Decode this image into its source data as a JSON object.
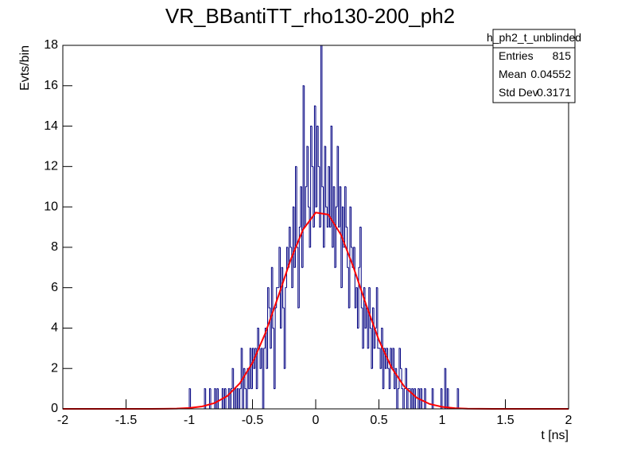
{
  "chart_data": {
    "type": "histogram",
    "title": "VR_BBantiTT_rho130-200_ph2",
    "x_label": "t [ns]",
    "y_label": "Evts/bin",
    "color": "#000080",
    "xlim": [
      -2,
      2
    ],
    "ylim": [
      0,
      18
    ],
    "xticks": [
      -2,
      -1.5,
      -1,
      -0.5,
      0,
      0.5,
      1,
      1.5,
      2
    ],
    "yticks": [
      0,
      2,
      4,
      6,
      8,
      10,
      12,
      14,
      16,
      18
    ],
    "stats": {
      "name": "h_ph2_t_unblinded",
      "rows": [
        [
          "Entries",
          "815"
        ],
        [
          "Mean",
          "0.04552"
        ],
        [
          "Std Dev",
          "0.3171"
        ]
      ]
    },
    "fit": {
      "color": "#ff0000",
      "x": [
        -2,
        -1.9,
        -1.8,
        -1.7,
        -1.6,
        -1.5,
        -1.4,
        -1.3,
        -1.2,
        -1.1,
        -1,
        -0.9,
        -0.8,
        -0.7,
        -0.6,
        -0.5,
        -0.4,
        -0.3,
        -0.2,
        -0.1,
        0,
        0.1,
        0.2,
        0.3,
        0.4,
        0.5,
        0.6,
        0.7,
        0.8,
        0.9,
        1,
        1.1,
        1.2,
        1.3,
        1.4,
        1.5,
        1.6,
        1.7,
        1.8,
        1.9,
        2
      ],
      "values": [
        0,
        0,
        0,
        0,
        0,
        0,
        0,
        0,
        0.0045,
        0.0148,
        0.044,
        0.118,
        0.288,
        0.634,
        1.265,
        2.28,
        3.72,
        5.5,
        7.35,
        8.88,
        9.72,
        9.62,
        8.62,
        6.99,
        5.13,
        3.4,
        2.04,
        1.11,
        0.546,
        0.243,
        0.098,
        0.036,
        0.012,
        0.0035,
        0,
        0,
        0,
        0,
        0,
        0,
        0
      ]
    },
    "bins": [
      -2,
      -1.99,
      -1.98,
      -1.97,
      -1.96,
      -1.95,
      -1.94,
      -1.93,
      -1.92,
      -1.91,
      -1.9,
      -1.89,
      -1.88,
      -1.87,
      -1.86,
      -1.85,
      -1.84,
      -1.83,
      -1.82,
      -1.81,
      -1.8,
      -1.79,
      -1.78,
      -1.77,
      -1.76,
      -1.75,
      -1.74,
      -1.73,
      -1.72,
      -1.71,
      -1.7,
      -1.69,
      -1.68,
      -1.67,
      -1.66,
      -1.65,
      -1.64,
      -1.63,
      -1.62,
      -1.61,
      -1.6,
      -1.59,
      -1.58,
      -1.57,
      -1.56,
      -1.55,
      -1.54,
      -1.53,
      -1.52,
      -1.51,
      -1.5,
      -1.49,
      -1.48,
      -1.47,
      -1.46,
      -1.45,
      -1.44,
      -1.43,
      -1.42,
      -1.41,
      -1.4,
      -1.39,
      -1.38,
      -1.37,
      -1.36,
      -1.35,
      -1.34,
      -1.33,
      -1.32,
      -1.31,
      -1.3,
      -1.29,
      -1.28,
      -1.27,
      -1.26,
      -1.25,
      -1.24,
      -1.23,
      -1.22,
      -1.21,
      -1.2,
      -1.19,
      -1.18,
      -1.17,
      -1.16,
      -1.15,
      -1.14,
      -1.13,
      -1.12,
      -1.11,
      -1.1,
      -1.09,
      -1.08,
      -1.07,
      -1.06,
      -1.05,
      -1.04,
      -1.03,
      -1.02,
      -1.01,
      -1,
      -0.99,
      -0.98,
      -0.97,
      -0.96,
      -0.95,
      -0.94,
      -0.93,
      -0.92,
      -0.91,
      -0.9,
      -0.89,
      -0.88,
      -0.87,
      -0.86,
      -0.85,
      -0.84,
      -0.83,
      -0.82,
      -0.81,
      -0.8,
      -0.79,
      -0.78,
      -0.77,
      -0.76,
      -0.75,
      -0.74,
      -0.73,
      -0.72,
      -0.71,
      -0.7,
      -0.69,
      -0.68,
      -0.67,
      -0.66,
      -0.65,
      -0.64,
      -0.63,
      -0.62,
      -0.61,
      -0.6,
      -0.59,
      -0.58,
      -0.57,
      -0.56,
      -0.55,
      -0.54,
      -0.53,
      -0.52,
      -0.51,
      -0.5,
      -0.49,
      -0.48,
      -0.47,
      -0.46,
      -0.45,
      -0.44,
      -0.43,
      -0.42,
      -0.41,
      -0.4,
      -0.39,
      -0.38,
      -0.37,
      -0.36,
      -0.35,
      -0.34,
      -0.33,
      -0.32,
      -0.31,
      -0.3,
      -0.29,
      -0.28,
      -0.27,
      -0.26,
      -0.25,
      -0.24,
      -0.23,
      -0.22,
      -0.21,
      -0.2,
      -0.19,
      -0.18,
      -0.17,
      -0.16,
      -0.15,
      -0.14,
      -0.13,
      -0.12,
      -0.11,
      -0.1,
      -0.09,
      -0.08,
      -0.07,
      -0.06,
      -0.05,
      -0.04,
      -0.03,
      -0.02,
      -0.01,
      0,
      0.01,
      0.02,
      0.03,
      0.04,
      0.05,
      0.06,
      0.07,
      0.08,
      0.09,
      0.1,
      0.11,
      0.12,
      0.13,
      0.14,
      0.15,
      0.16,
      0.17,
      0.18,
      0.19,
      0.2,
      0.21,
      0.22,
      0.23,
      0.24,
      0.25,
      0.26,
      0.27,
      0.28,
      0.29,
      0.3,
      0.31,
      0.32,
      0.33,
      0.34,
      0.35,
      0.36,
      0.37,
      0.38,
      0.39,
      0.4,
      0.41,
      0.42,
      0.43,
      0.44,
      0.45,
      0.46,
      0.47,
      0.48,
      0.49,
      0.5,
      0.51,
      0.52,
      0.53,
      0.54,
      0.55,
      0.56,
      0.57,
      0.58,
      0.59,
      0.6,
      0.61,
      0.62,
      0.63,
      0.64,
      0.65,
      0.66,
      0.67,
      0.68,
      0.69,
      0.7,
      0.71,
      0.72,
      0.73,
      0.74,
      0.75,
      0.76,
      0.77,
      0.78,
      0.79,
      0.8,
      0.81,
      0.82,
      0.83,
      0.84,
      0.85,
      0.86,
      0.87,
      0.88,
      0.89,
      0.9,
      0.91,
      0.92,
      0.93,
      0.94,
      0.95,
      0.96,
      0.97,
      0.98,
      0.99,
      1,
      1.01,
      1.02,
      1.03,
      1.04,
      1.05,
      1.06,
      1.07,
      1.08,
      1.09,
      1.1,
      1.11,
      1.12,
      1.13,
      1.14,
      1.15,
      1.16,
      1.17,
      1.18,
      1.19,
      1.2,
      1.21,
      1.22,
      1.23,
      1.24,
      1.25,
      1.26,
      1.27,
      1.28,
      1.29,
      1.3,
      1.31,
      1.32,
      1.33,
      1.34,
      1.35,
      1.36,
      1.37,
      1.38,
      1.39,
      1.4,
      1.41,
      1.42,
      1.43,
      1.44,
      1.45,
      1.46,
      1.47,
      1.48,
      1.49,
      1.5,
      1.51,
      1.52,
      1.53,
      1.54,
      1.55,
      1.56,
      1.57,
      1.58,
      1.59,
      1.6,
      1.61,
      1.62,
      1.63,
      1.64,
      1.65,
      1.66,
      1.67,
      1.68,
      1.69,
      1.7,
      1.71,
      1.72,
      1.73,
      1.74,
      1.75,
      1.76,
      1.77,
      1.78,
      1.79,
      1.8,
      1.81,
      1.82,
      1.83,
      1.84,
      1.85,
      1.86,
      1.87,
      1.88,
      1.89,
      1.9,
      1.91,
      1.92,
      1.93,
      1.94,
      1.95,
      1.96,
      1.97,
      1.98,
      1.99,
      2
    ],
    "values": [
      0,
      0,
      0,
      0,
      0,
      0,
      0,
      0,
      0,
      0,
      0,
      0,
      0,
      0,
      0,
      0,
      0,
      0,
      0,
      0,
      0,
      0,
      0,
      0,
      0,
      0,
      0,
      0,
      0,
      0,
      0,
      0,
      0,
      0,
      0,
      0,
      0,
      0,
      0,
      0,
      0,
      0,
      0,
      0,
      0,
      0,
      0,
      0,
      0,
      0,
      0,
      0,
      0,
      0,
      0,
      0,
      0,
      0,
      0,
      0,
      0,
      0,
      0,
      0,
      0,
      0,
      0,
      0,
      0,
      0,
      0,
      0,
      0,
      0,
      0,
      0,
      0,
      0,
      0,
      0,
      0,
      0,
      0,
      0,
      0,
      0,
      0,
      0,
      0,
      0,
      0,
      0,
      0,
      0,
      0,
      0,
      0,
      0,
      0,
      0,
      1,
      0,
      0,
      0,
      0,
      0,
      0,
      0,
      0,
      0,
      0,
      0,
      1,
      0,
      0,
      0,
      1,
      0,
      0,
      0,
      1,
      0,
      1,
      0,
      0,
      0,
      1,
      0,
      1,
      0,
      0,
      1,
      0,
      1,
      2,
      0,
      1,
      0,
      1,
      0,
      1,
      3,
      0,
      2,
      1,
      0,
      2,
      1,
      3,
      1,
      3,
      2,
      3,
      1,
      4,
      3,
      2,
      3,
      0,
      3,
      4,
      2,
      6,
      5,
      3,
      7,
      4,
      1,
      5,
      6,
      6,
      8,
      4,
      7,
      5,
      2,
      6,
      8,
      7,
      9,
      8,
      6,
      10,
      7,
      12,
      8,
      5,
      9,
      11,
      7,
      16,
      9,
      11,
      13,
      10,
      8,
      14,
      12,
      9,
      15,
      10,
      14,
      12,
      9,
      18,
      11,
      8,
      13,
      10,
      9,
      12,
      9,
      14,
      8,
      11,
      7,
      10,
      13,
      9,
      11,
      6,
      10,
      8,
      11,
      9,
      7,
      5,
      10,
      8,
      7,
      8,
      5,
      6,
      4,
      7,
      9,
      5,
      3,
      6,
      4,
      5,
      3,
      6,
      4,
      2,
      5,
      3,
      4,
      6,
      3,
      3,
      2,
      4,
      1,
      3,
      2,
      3,
      2,
      1,
      3,
      2,
      3,
      1,
      2,
      0,
      1,
      3,
      2,
      1,
      0,
      1,
      2,
      0,
      1,
      1,
      0,
      1,
      0,
      1,
      0,
      0,
      1,
      0,
      1,
      0,
      0,
      1,
      0,
      0,
      0,
      0,
      0,
      1,
      0,
      0,
      0,
      0,
      0,
      0,
      1,
      0,
      0,
      2,
      0,
      1,
      0,
      0,
      0,
      0,
      0,
      0,
      0,
      1,
      0,
      0,
      0,
      0,
      0,
      0,
      0,
      0,
      0,
      0,
      0,
      0,
      0,
      0,
      0,
      0,
      0,
      0,
      0,
      0,
      0,
      0,
      0,
      0,
      0,
      0,
      0,
      0,
      0,
      0,
      0,
      0,
      0,
      0,
      0,
      0,
      0,
      0,
      0,
      0,
      0,
      0,
      0,
      0,
      0,
      0,
      0,
      0,
      0,
      0,
      0,
      0,
      0,
      0,
      0,
      0,
      0,
      0,
      0,
      0,
      0,
      0,
      0,
      0,
      0,
      0,
      0,
      0,
      0,
      0,
      0,
      0,
      0,
      0,
      0,
      0,
      0,
      0,
      0,
      0,
      0,
      0,
      0,
      0,
      0,
      0,
      0
    ]
  }
}
